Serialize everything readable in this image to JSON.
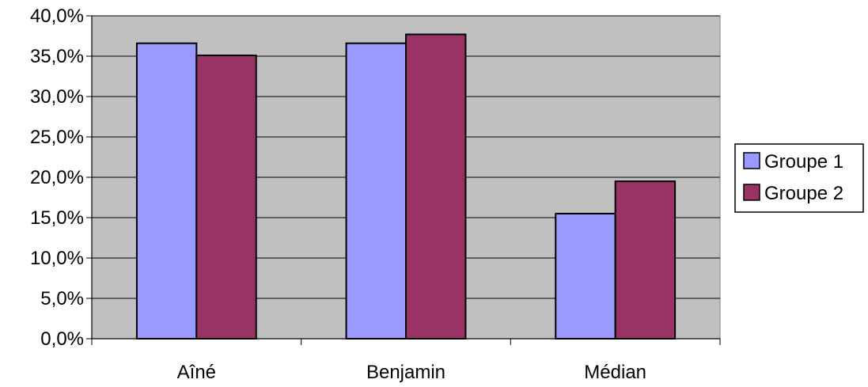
{
  "chart_data": {
    "type": "bar",
    "categories": [
      "Aîné",
      "Benjamin",
      "Médian"
    ],
    "series": [
      {
        "name": "Groupe 1",
        "values": [
          36.6,
          36.6,
          15.5
        ],
        "color": "#9999ff"
      },
      {
        "name": "Groupe 2",
        "values": [
          35.1,
          37.7,
          19.5
        ],
        "color": "#993366"
      }
    ],
    "y_ticks": [
      "0,0%",
      "5,0%",
      "10,0%",
      "15,0%",
      "20,0%",
      "25,0%",
      "30,0%",
      "35,0%",
      "40,0%"
    ],
    "ylim": [
      0,
      40
    ],
    "y_tick_step": 5,
    "grid": true,
    "legend_position": "right",
    "plot_background": "#c0c0c0",
    "gridline_color": "#000000"
  }
}
